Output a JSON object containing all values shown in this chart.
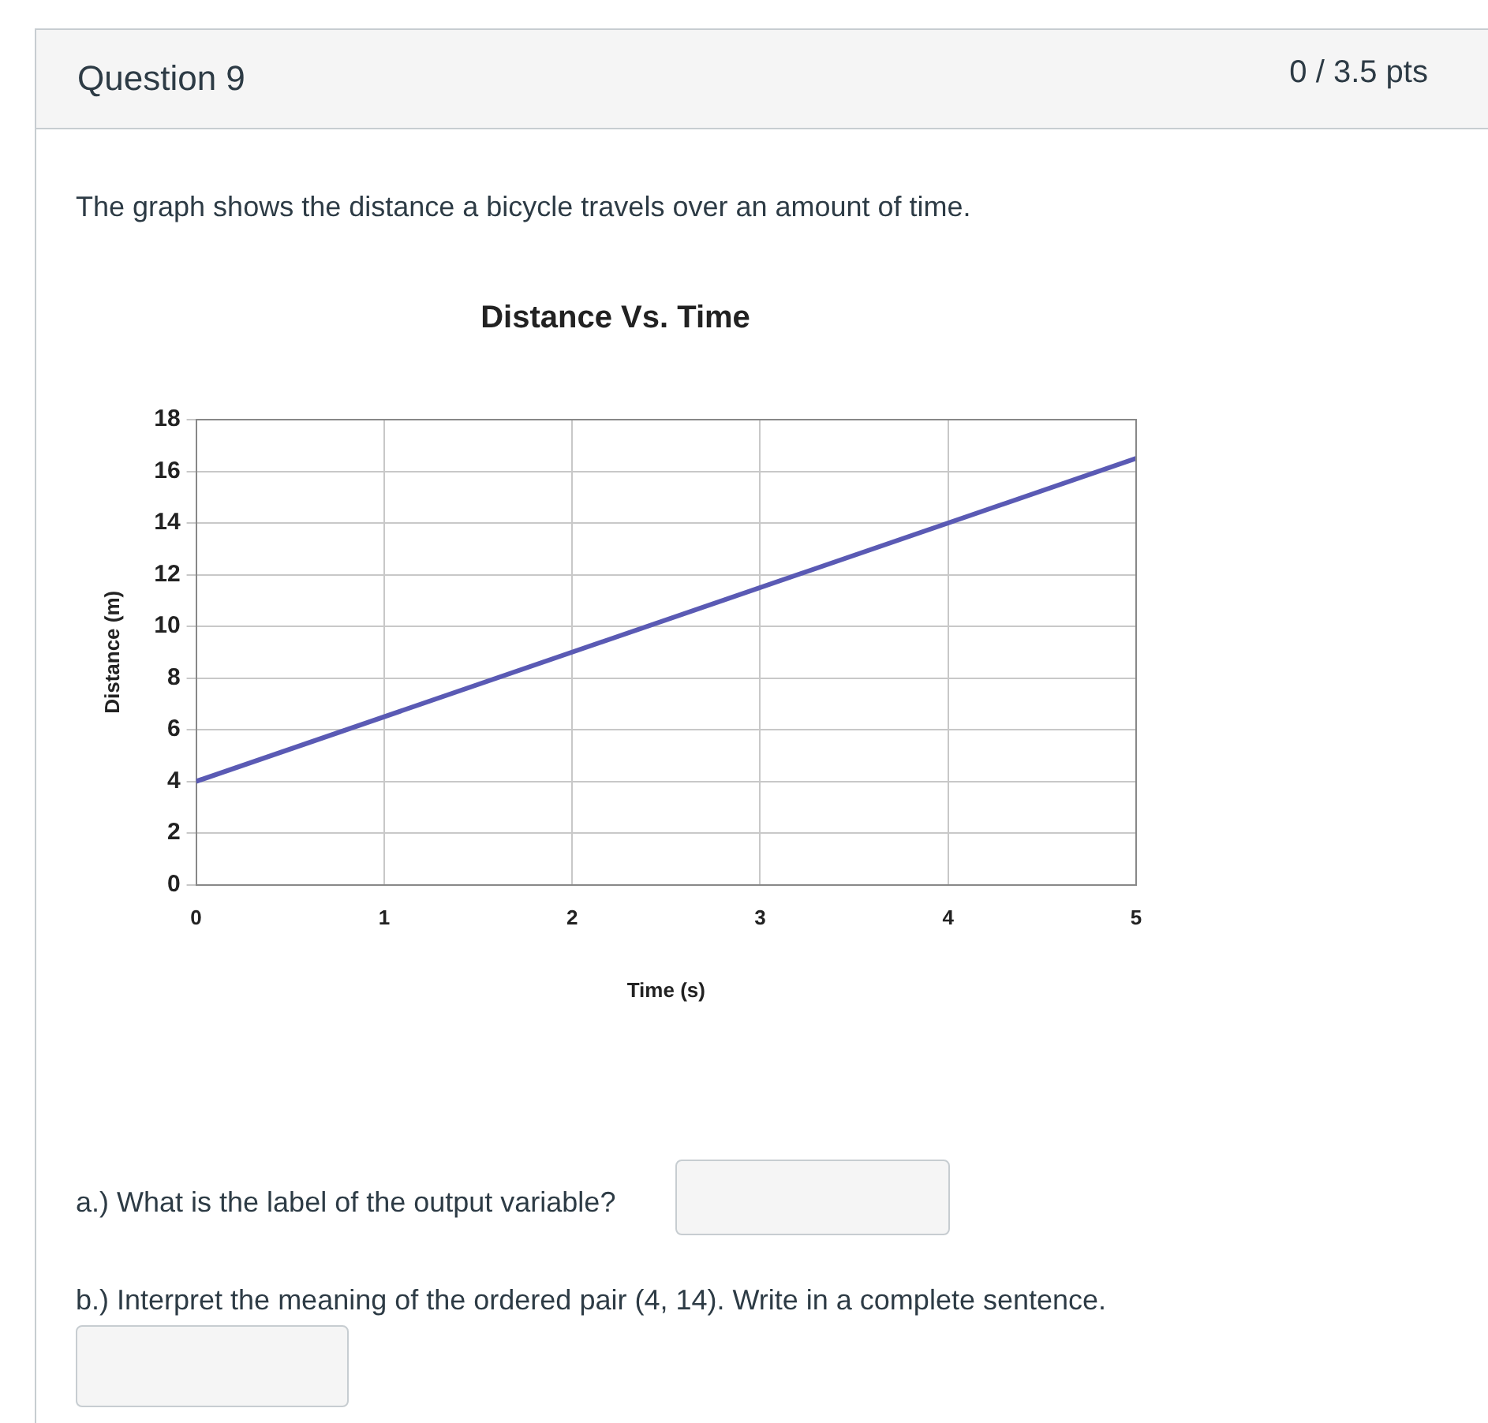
{
  "chart_data": {
    "type": "line",
    "title": "Distance Vs. Time",
    "xlabel": "Time (s)",
    "ylabel": "Distance (m)",
    "x": [
      0,
      5
    ],
    "series": [
      {
        "color": "#5a5ab4",
        "values": [
          4,
          16.5
        ]
      }
    ],
    "xlim": [
      0,
      5
    ],
    "xticks": [
      0,
      1,
      2,
      3,
      4,
      5
    ],
    "ylim": [
      0,
      18
    ],
    "yticks": [
      0,
      2,
      4,
      6,
      8,
      10,
      12,
      14,
      16,
      18
    ],
    "grid": true,
    "legend": false,
    "marker": "none",
    "line_style": "solid",
    "annotations": [
      "Question 9",
      "0 / 3.5 pts",
      "The graph shows the distance a bicycle travels over an amount of time.",
      "a.) What is the label of the output variable?",
      "b.) Interpret the meaning of the ordered pair (4, 14). Write in a complete sentence."
    ]
  }
}
